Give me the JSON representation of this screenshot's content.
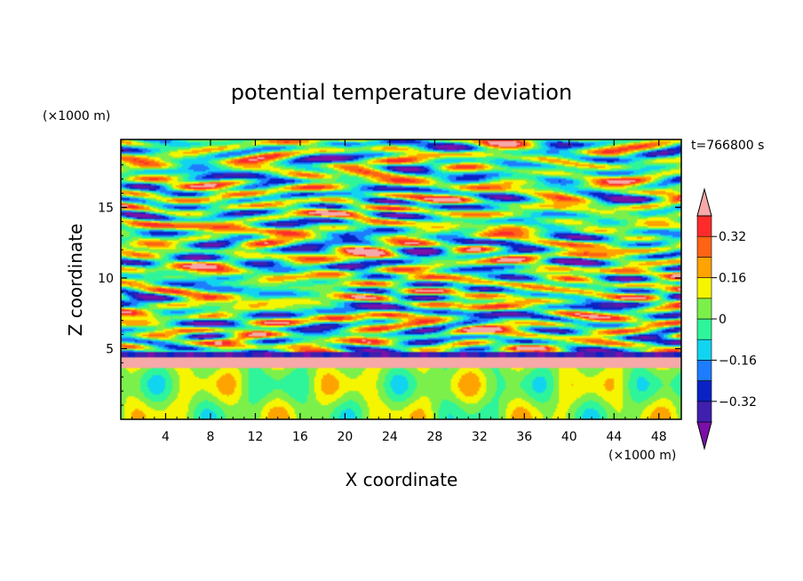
{
  "chart_data": {
    "type": "heatmap",
    "title": "potential temperature deviation",
    "xlabel": "X coordinate",
    "ylabel": "Z coordinate",
    "x_unit": "(×1000 m)",
    "y_unit": "(×1000 m)",
    "time_label": "t=766800 s",
    "xlim": [
      0,
      50
    ],
    "ylim": [
      0,
      19.8
    ],
    "x_ticks": [
      4,
      8,
      12,
      16,
      20,
      24,
      28,
      32,
      36,
      40,
      44,
      48
    ],
    "y_ticks": [
      5,
      10,
      15
    ],
    "colorbar": {
      "levels": [
        -0.4,
        -0.32,
        -0.24,
        -0.16,
        -0.08,
        0,
        0.08,
        0.16,
        0.24,
        0.32,
        0.4
      ],
      "labels": [
        "-0.32",
        "-0.16",
        "0",
        "0.16",
        "0.32"
      ],
      "label_values": [
        -0.32,
        -0.16,
        0,
        0.16,
        0.32
      ],
      "colors": [
        "#7b10a8",
        "#3f1fae",
        "#0a22c4",
        "#1e7cff",
        "#11d4f0",
        "#2ef59a",
        "#7cf04a",
        "#f5f500",
        "#ffa300",
        "#ff6414",
        "#ff2b2b",
        "#f7a8a8"
      ]
    }
  }
}
